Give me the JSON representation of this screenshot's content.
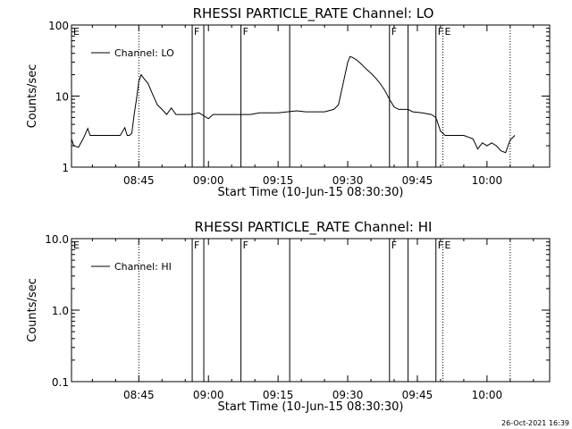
{
  "footer_timestamp": "26-Oct-2021 16:39",
  "colors": {
    "background": "#ffffff",
    "foreground": "#000000"
  },
  "chart_data": [
    {
      "type": "line",
      "title": "RHESSI PARTICLE_RATE Channel: LO",
      "xlabel": "Start Time (10-Jun-15 08:30:30)",
      "ylabel": "Counts/sec",
      "y_scale": "log",
      "ylim": [
        1,
        100
      ],
      "y_ticks": [
        {
          "value": 1,
          "label": "1"
        },
        {
          "value": 10,
          "label": "10"
        },
        {
          "value": 100,
          "label": "100"
        }
      ],
      "xlim": [
        "08:30:30",
        "10:13:30"
      ],
      "x_ticks": [
        "08:45",
        "09:00",
        "09:15",
        "09:30",
        "09:45",
        "10:00"
      ],
      "legend": {
        "position": "top-left",
        "entries": [
          "Channel: LO"
        ]
      },
      "series": [
        {
          "name": "Channel: LO",
          "x": [
            "08:30:30",
            "08:31:00",
            "08:32:00",
            "08:33:00",
            "08:34:00",
            "08:34:30",
            "08:35:00",
            "08:36:00",
            "08:37:00",
            "08:38:00",
            "08:40:00",
            "08:41:00",
            "08:42:00",
            "08:42:30",
            "08:43:00",
            "08:43:30",
            "08:44:00",
            "08:44:30",
            "08:45:00",
            "08:45:30",
            "08:46:00",
            "08:47:00",
            "08:48:00",
            "08:49:00",
            "08:50:00",
            "08:51:00",
            "08:52:00",
            "08:53:00",
            "08:54:00",
            "08:56:00",
            "08:58:00",
            "09:00:00",
            "09:01:00",
            "09:03:00",
            "09:05:00",
            "09:07:00",
            "09:09:00",
            "09:11:00",
            "09:13:00",
            "09:15:00",
            "09:17:00",
            "09:19:00",
            "09:21:00",
            "09:23:00",
            "09:25:00",
            "09:27:00",
            "09:28:00",
            "09:29:00",
            "09:30:00",
            "09:30:30",
            "09:31:00",
            "09:32:00",
            "09:33:00",
            "09:34:00",
            "09:35:00",
            "09:36:00",
            "09:37:00",
            "09:38:00",
            "09:39:00",
            "09:40:00",
            "09:41:00",
            "09:42:00",
            "09:43:00",
            "09:44:00",
            "09:46:00",
            "09:48:00",
            "09:49:00",
            "09:50:00",
            "09:51:00",
            "09:52:00",
            "09:53:00",
            "09:55:00",
            "09:57:00",
            "09:58:00",
            "09:59:00",
            "10:00:00",
            "10:01:00",
            "10:02:00",
            "10:03:00",
            "10:04:00",
            "10:05:00",
            "10:06:00"
          ],
          "y": [
            2.5,
            2.0,
            1.9,
            2.5,
            3.5,
            2.8,
            2.8,
            2.8,
            2.8,
            2.8,
            2.8,
            2.8,
            3.6,
            2.8,
            2.8,
            3.0,
            5.5,
            9.0,
            16.0,
            20.0,
            18.0,
            15.0,
            10.5,
            7.5,
            6.5,
            5.5,
            6.8,
            5.5,
            5.5,
            5.5,
            5.8,
            4.8,
            5.5,
            5.5,
            5.5,
            5.5,
            5.5,
            5.8,
            5.8,
            5.8,
            6.0,
            6.2,
            6.0,
            6.0,
            6.0,
            6.5,
            7.5,
            15.0,
            30.0,
            36.0,
            35.0,
            32.0,
            28.0,
            24.0,
            21.0,
            18.0,
            15.0,
            12.0,
            9.0,
            7.0,
            6.5,
            6.5,
            6.5,
            6.0,
            5.8,
            5.5,
            5.0,
            3.2,
            2.8,
            2.8,
            2.8,
            2.8,
            2.5,
            1.8,
            2.2,
            2.0,
            2.2,
            2.0,
            1.7,
            1.6,
            2.4,
            2.8
          ]
        }
      ],
      "annotations": [
        {
          "time": "08:30:30",
          "style": "solid",
          "label": "E"
        },
        {
          "time": "08:45:00",
          "style": "dotted",
          "label": ""
        },
        {
          "time": "08:56:30",
          "style": "solid",
          "label": "F"
        },
        {
          "time": "08:59:00",
          "style": "solid",
          "label": ""
        },
        {
          "time": "09:07:00",
          "style": "solid",
          "label": "F"
        },
        {
          "time": "09:17:30",
          "style": "solid",
          "label": ""
        },
        {
          "time": "09:39:00",
          "style": "solid",
          "label": "F"
        },
        {
          "time": "09:43:00",
          "style": "solid",
          "label": ""
        },
        {
          "time": "09:49:00",
          "style": "solid",
          "label": "F"
        },
        {
          "time": "09:50:30",
          "style": "dotted",
          "label": "E"
        },
        {
          "time": "10:05:00",
          "style": "dotted",
          "label": ""
        }
      ]
    },
    {
      "type": "line",
      "title": "RHESSI PARTICLE_RATE Channel: HI",
      "xlabel": "Start Time (10-Jun-15 08:30:30)",
      "ylabel": "Counts/sec",
      "y_scale": "log",
      "ylim": [
        0.1,
        10
      ],
      "y_ticks": [
        {
          "value": 0.1,
          "label": "0.1"
        },
        {
          "value": 1,
          "label": "1.0"
        },
        {
          "value": 10,
          "label": "10.0"
        }
      ],
      "xlim": [
        "08:30:30",
        "10:13:30"
      ],
      "x_ticks": [
        "08:45",
        "09:00",
        "09:15",
        "09:30",
        "09:45",
        "10:00"
      ],
      "legend": {
        "position": "top-left",
        "entries": [
          "Channel: HI"
        ]
      },
      "series": [
        {
          "name": "Channel: HI",
          "x": [],
          "y": []
        }
      ],
      "annotations": [
        {
          "time": "08:30:30",
          "style": "solid",
          "label": "E"
        },
        {
          "time": "08:45:00",
          "style": "dotted",
          "label": ""
        },
        {
          "time": "08:56:30",
          "style": "solid",
          "label": "F"
        },
        {
          "time": "08:59:00",
          "style": "solid",
          "label": ""
        },
        {
          "time": "09:07:00",
          "style": "solid",
          "label": "F"
        },
        {
          "time": "09:17:30",
          "style": "solid",
          "label": ""
        },
        {
          "time": "09:39:00",
          "style": "solid",
          "label": "F"
        },
        {
          "time": "09:43:00",
          "style": "solid",
          "label": ""
        },
        {
          "time": "09:49:00",
          "style": "solid",
          "label": "F"
        },
        {
          "time": "09:50:30",
          "style": "dotted",
          "label": "E"
        },
        {
          "time": "10:05:00",
          "style": "dotted",
          "label": ""
        }
      ]
    }
  ]
}
